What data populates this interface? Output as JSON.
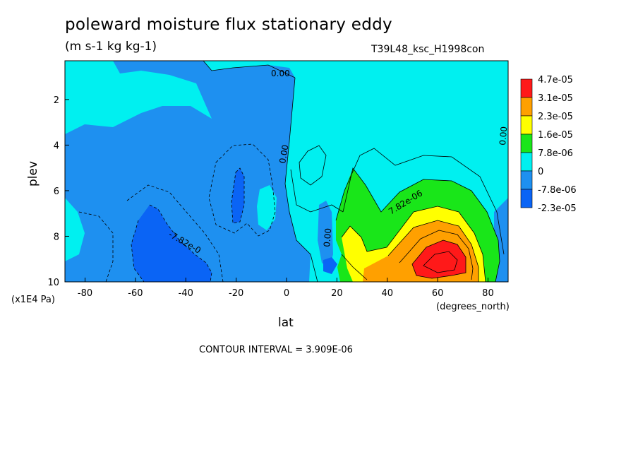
{
  "title": "poleward moisture flux stationary eddy",
  "units": "(m s-1 kg kg-1)",
  "run_id": "T39L48_ksc_H1998con",
  "contour_interval": "CONTOUR INTERVAL = 3.909E-06",
  "colors": {
    "c_neg2": "#0a64f5",
    "c_neg1": "#1e90f0",
    "c_zero": "#00f0f0",
    "c_pos1": "#19e619",
    "c_pos2": "#ffff00",
    "c_pos3": "#ffa000",
    "c_pos4": "#ff1919"
  },
  "chart_data": {
    "type": "contour",
    "title": "poleward moisture flux stationary eddy",
    "units": "(m s-1 kg kg-1)",
    "xlabel": "lat",
    "x_units": "(degrees_north)",
    "ylabel": "plev",
    "y_units": "(x1E4 Pa)",
    "xlim": [
      -88,
      88
    ],
    "ylim": [
      10,
      0.3
    ],
    "xticks": [
      -80,
      -60,
      -40,
      -20,
      0,
      20,
      40,
      60,
      80
    ],
    "yticks": [
      2,
      4,
      6,
      8,
      10
    ],
    "contour_interval": 3.909e-06,
    "contour_labels": [
      "0.00",
      "0.00",
      "0.00",
      "0.00",
      "-7.82e-0",
      "7.82e-06"
    ],
    "colorbar": {
      "labels": [
        "4.7e-05",
        "3.1e-05",
        "2.3e-05",
        "1.6e-05",
        "7.8e-06",
        "0",
        "-7.8e-06",
        "-2.3e-05"
      ],
      "colors": [
        "#ff1919",
        "#ffa000",
        "#ffff00",
        "#19e619",
        "#00f0f0",
        "#1e90f0",
        "#0a64f5"
      ]
    },
    "features": [
      {
        "name": "positive maximum",
        "lat": 60,
        "plev": 9.2,
        "approx_value": 4e-05
      },
      {
        "name": "secondary positive",
        "lat": 27,
        "plev": 8.4,
        "approx_value": 2e-05
      },
      {
        "name": "negative minimum",
        "lat": -50,
        "plev": 8.5,
        "approx_value": -1.6e-05
      },
      {
        "name": "negative pocket",
        "lat": -20,
        "plev": 6.5,
        "approx_value": -1.2e-05
      }
    ]
  }
}
